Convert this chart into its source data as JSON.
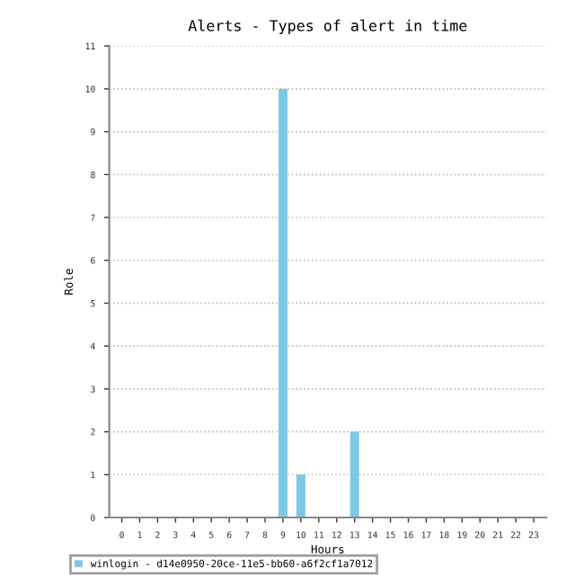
{
  "chart_data": {
    "type": "bar",
    "title": "Alerts - Types of alert in time",
    "xlabel": "Hours",
    "ylabel": "Role",
    "categories": [
      "0",
      "1",
      "2",
      "3",
      "4",
      "5",
      "6",
      "7",
      "8",
      "9",
      "10",
      "11",
      "12",
      "13",
      "14",
      "15",
      "16",
      "17",
      "18",
      "19",
      "20",
      "21",
      "22",
      "23"
    ],
    "series": [
      {
        "name": "winlogin - d14e0950-20ce-11e5-bb60-a6f2cf1a7012",
        "color": "#7ec8e6",
        "values": [
          0,
          0,
          0,
          0,
          0,
          0,
          0,
          0,
          0,
          10,
          1,
          0,
          0,
          2,
          0,
          0,
          0,
          0,
          0,
          0,
          0,
          0,
          0,
          0
        ]
      }
    ],
    "ylim": [
      0,
      11
    ],
    "yticks": [
      0,
      1,
      2,
      3,
      4,
      5,
      6,
      7,
      8,
      9,
      10,
      11
    ],
    "grid": "y",
    "legend": "bottom left"
  }
}
